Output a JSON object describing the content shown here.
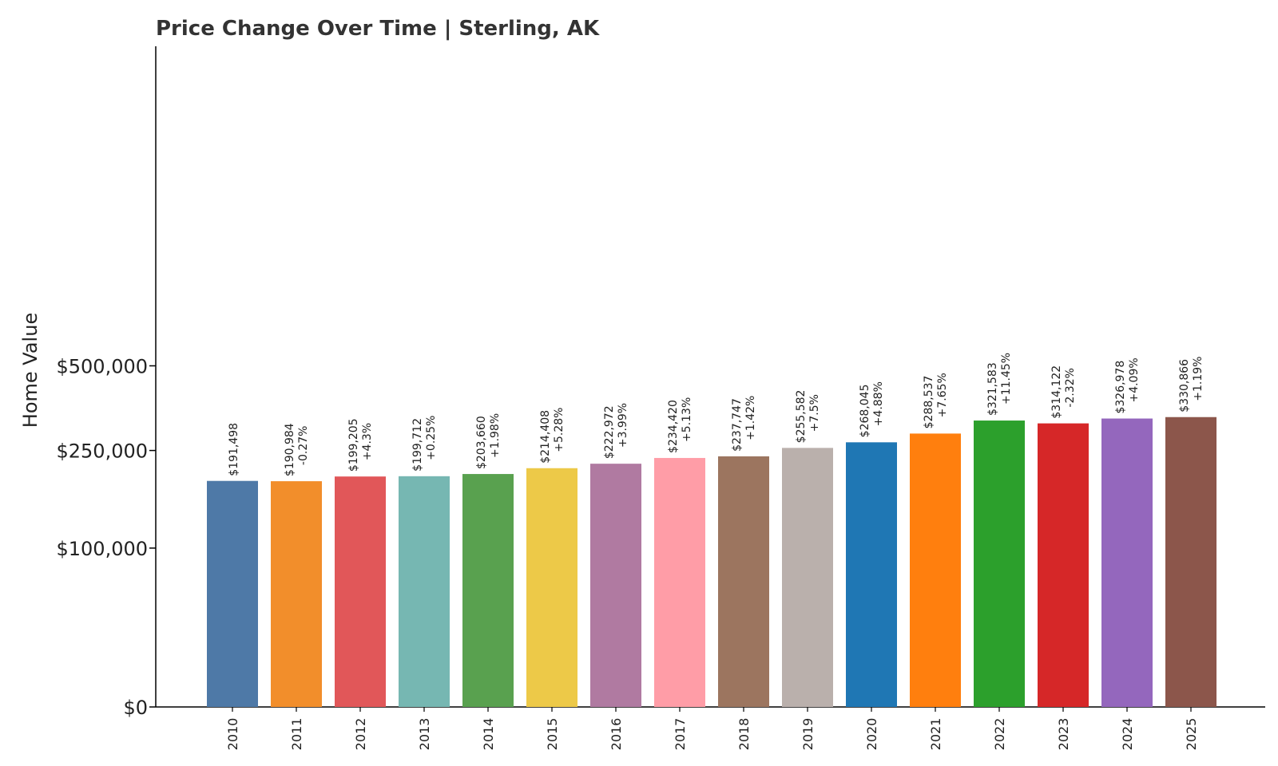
{
  "chart_data": {
    "type": "bar",
    "title": "Price Change Over Time | Sterling, AK",
    "xlabel": "",
    "ylabel": "Home Value",
    "categories": [
      "2010",
      "2011",
      "2012",
      "2013",
      "2014",
      "2015",
      "2016",
      "2017",
      "2018",
      "2019",
      "2020",
      "2021",
      "2022",
      "2023",
      "2024",
      "2025"
    ],
    "values": [
      191498,
      190984,
      199205,
      199712,
      203660,
      214408,
      222972,
      234420,
      237747,
      255582,
      268045,
      288537,
      321583,
      314122,
      326978,
      330866
    ],
    "value_labels": [
      "$191,498",
      "$190,984",
      "$199,205",
      "$199,712",
      "$203,660",
      "$214,408",
      "$222,972",
      "$234,420",
      "$237,747",
      "$255,582",
      "$268,045",
      "$288,537",
      "$321,583",
      "$314,122",
      "$326,978",
      "$330,866"
    ],
    "change_labels": [
      "",
      "-0.27%",
      "+4.3%",
      "+0.25%",
      "+1.98%",
      "+5.28%",
      "+3.99%",
      "+5.13%",
      "+1.42%",
      "+7.5%",
      "+4.88%",
      "+7.65%",
      "+11.45%",
      "-2.32%",
      "+4.09%",
      "+1.19%"
    ],
    "colors": [
      "#4e79a7",
      "#f28e2b",
      "#e15759",
      "#76b7b2",
      "#59a14f",
      "#edc948",
      "#b07aa1",
      "#ff9da7",
      "#9c755f",
      "#bab0ac",
      "#1f77b4",
      "#ff7f0e",
      "#2ca02c",
      "#d62728",
      "#9467bd",
      "#8c564b"
    ],
    "yscale": "symlog",
    "ylim": [
      0,
      600000
    ],
    "yticks": [
      0,
      100000,
      250000,
      500000
    ],
    "ytick_labels": [
      "$0",
      "$100,000",
      "$250,000",
      "$500,000"
    ],
    "grid": false,
    "legend": "none"
  }
}
